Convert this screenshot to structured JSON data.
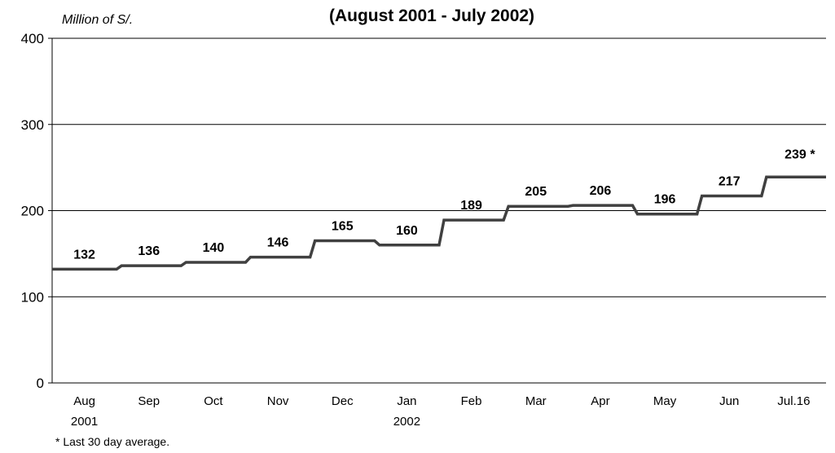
{
  "chart_data": {
    "type": "line",
    "title": "(August 2001 - July 2002)",
    "ylabel": "Million of S/.",
    "ylim": [
      0,
      400
    ],
    "yticks": [
      0,
      100,
      200,
      300,
      400
    ],
    "grid": true,
    "line_color": "#404040",
    "categories": [
      "Aug",
      "Sep",
      "Oct",
      "Nov",
      "Dec",
      "Jan",
      "Feb",
      "Mar",
      "Apr",
      "May",
      "Jun",
      "Jul.16"
    ],
    "category_sublabels": [
      "2001",
      "",
      "",
      "",
      "",
      "2002",
      "",
      "",
      "",
      "",
      "",
      ""
    ],
    "values": [
      132,
      136,
      140,
      146,
      165,
      160,
      189,
      205,
      206,
      196,
      217,
      239
    ],
    "data_labels": [
      "132",
      "136",
      "140",
      "146",
      "165",
      "160",
      "189",
      "205",
      "206",
      "196",
      "217",
      "239"
    ],
    "last_value_marker": "*",
    "footnote": "* Last 30 day average."
  }
}
